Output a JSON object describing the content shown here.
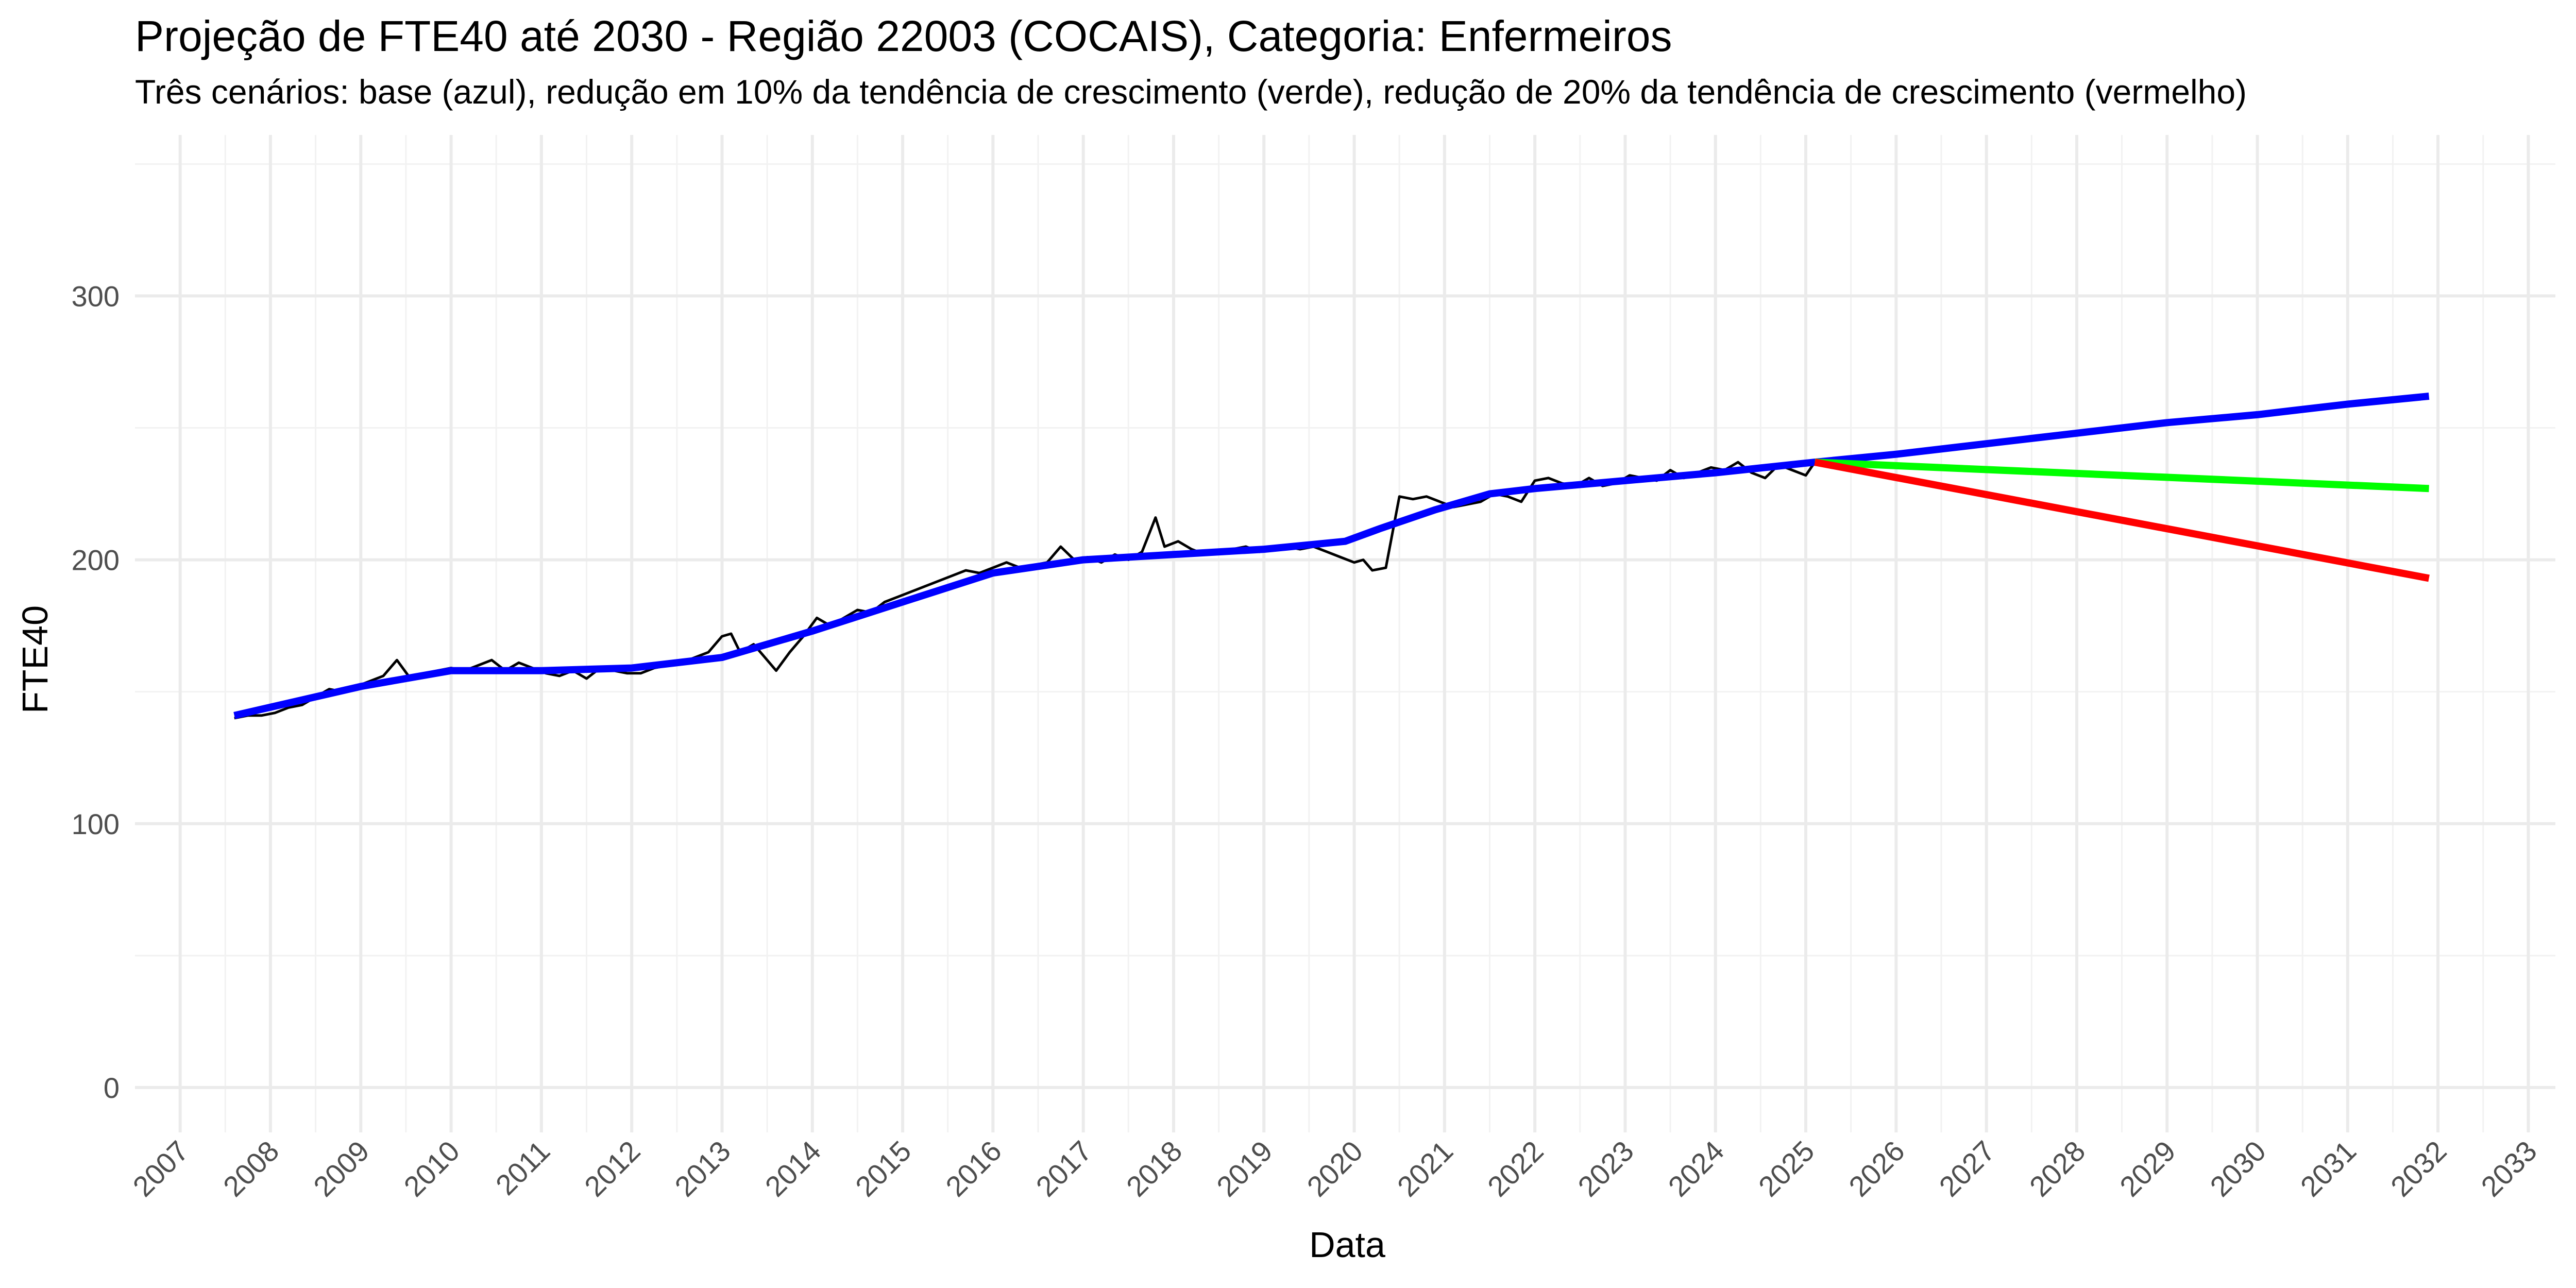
{
  "chart_data": {
    "type": "line",
    "title": "Projeção de FTE40 até 2030 - Região 22003 (COCAIS), Categoria: Enfermeiros",
    "subtitle": "Três cenários: base (azul), redução em 10% da tendência de crescimento (verde), redução de 20% da tendência de crescimento (vermelho)",
    "xlabel": "Data",
    "ylabel": "FTE40",
    "xlim": [
      2006.5,
      2033.3
    ],
    "ylim": [
      -17,
      361
    ],
    "y_ticks": [
      0,
      100,
      200,
      300
    ],
    "x_ticks": [
      "2007",
      "2008",
      "2009",
      "2010",
      "2011",
      "2012",
      "2013",
      "2014",
      "2015",
      "2016",
      "2017",
      "2018",
      "2019",
      "2020",
      "2021",
      "2022",
      "2023",
      "2024",
      "2025",
      "2026",
      "2027",
      "2028",
      "2029",
      "2030",
      "2031",
      "2032",
      "2033"
    ],
    "grid": true,
    "legend": "none",
    "series": [
      {
        "color": "#000000",
        "x": [
          2007.6,
          2007.75,
          2007.9,
          2008.05,
          2008.2,
          2008.35,
          2008.5,
          2008.65,
          2008.8,
          2008.95,
          2009.1,
          2009.25,
          2009.4,
          2009.55,
          2009.7,
          2009.85,
          2010.0,
          2010.15,
          2010.3,
          2010.45,
          2010.6,
          2010.75,
          2010.9,
          2011.05,
          2011.2,
          2011.35,
          2011.5,
          2011.65,
          2011.8,
          2011.95,
          2012.1,
          2012.25,
          2012.4,
          2012.55,
          2012.7,
          2012.85,
          2013.0,
          2013.1,
          2013.2,
          2013.35,
          2013.5,
          2013.6,
          2013.75,
          2013.9,
          2014.05,
          2014.2,
          2014.35,
          2014.5,
          2014.65,
          2014.8,
          2014.95,
          2015.1,
          2015.25,
          2015.4,
          2015.55,
          2015.7,
          2015.85,
          2016.0,
          2016.15,
          2016.3,
          2016.45,
          2016.6,
          2016.75,
          2016.9,
          2017.05,
          2017.2,
          2017.35,
          2017.5,
          2017.65,
          2017.8,
          2017.9,
          2018.05,
          2018.2,
          2018.35,
          2018.5,
          2018.65,
          2018.8,
          2018.95,
          2019.1,
          2019.25,
          2019.4,
          2019.55,
          2019.7,
          2019.85,
          2020.0,
          2020.1,
          2020.2,
          2020.35,
          2020.5,
          2020.65,
          2020.8,
          2020.95,
          2021.1,
          2021.25,
          2021.4,
          2021.55,
          2021.7,
          2021.85,
          2022.0,
          2022.15,
          2022.3,
          2022.45,
          2022.6,
          2022.75,
          2022.9,
          2023.05,
          2023.2,
          2023.35,
          2023.5,
          2023.65,
          2023.8,
          2023.95,
          2024.1,
          2024.25,
          2024.4,
          2024.55,
          2024.7,
          2024.85,
          2025.0,
          2025.1
        ],
        "values": [
          140,
          141,
          141,
          142,
          144,
          145,
          148,
          151,
          150,
          152,
          154,
          156,
          162,
          155,
          157,
          158,
          159,
          158,
          160,
          162,
          158,
          161,
          159,
          157,
          156,
          158,
          155,
          159,
          158,
          157,
          157,
          159,
          160,
          161,
          163,
          165,
          171,
          172,
          165,
          168,
          162,
          158,
          165,
          171,
          178,
          175,
          178,
          181,
          180,
          184,
          186,
          188,
          190,
          192,
          194,
          196,
          195,
          197,
          199,
          197,
          198,
          199,
          205,
          200,
          201,
          199,
          202,
          200,
          203,
          216,
          205,
          207,
          204,
          202,
          203,
          204,
          205,
          203,
          204,
          205,
          204,
          205,
          203,
          201,
          199,
          200,
          196,
          197,
          224,
          223,
          224,
          222,
          220,
          221,
          222,
          225,
          224,
          222,
          230,
          231,
          229,
          228,
          231,
          228,
          229,
          232,
          231,
          230,
          234,
          231,
          233,
          235,
          234,
          237,
          233,
          231,
          236,
          234,
          232,
          237
        ],
        "width": 5
      },
      {
        "color": "#0000ff",
        "x": [
          2007.6,
          2009.0,
          2010.0,
          2011.0,
          2012.0,
          2013.0,
          2014.0,
          2015.0,
          2016.0,
          2017.0,
          2018.0,
          2019.0,
          2019.9,
          2020.3,
          2020.9,
          2021.5,
          2022.0,
          2023.0,
          2024.0,
          2025.1,
          2026.0,
          2027.0,
          2028.0,
          2029.0,
          2030.0,
          2031.0,
          2031.9
        ],
        "values": [
          141,
          152,
          158,
          158,
          159,
          163,
          173,
          184,
          195,
          200,
          202,
          204,
          207,
          212,
          219,
          225,
          227,
          230,
          233,
          237,
          240,
          244,
          248,
          252,
          255,
          259,
          262
        ],
        "width": 14
      },
      {
        "color": "#00ff00",
        "x": [
          2025.1,
          2031.9
        ],
        "values": [
          237,
          227
        ],
        "width": 14
      },
      {
        "color": "#ff0000",
        "x": [
          2025.1,
          2031.9
        ],
        "values": [
          237,
          193
        ],
        "width": 14
      }
    ]
  }
}
